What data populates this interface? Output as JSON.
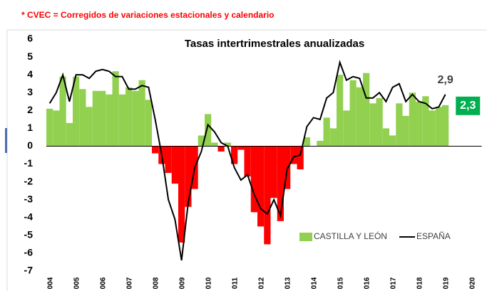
{
  "note_header": "* CVEC = Corregidos de variaciones estacionales y calendario",
  "chart_data": {
    "type": "bar_line",
    "title": "Tasas intertrimestrales anualizadas",
    "categories": [
      "004",
      null,
      null,
      null,
      "005",
      null,
      null,
      null,
      "006",
      null,
      null,
      null,
      "007",
      null,
      null,
      null,
      "008",
      null,
      null,
      null,
      "009",
      null,
      null,
      null,
      "010",
      null,
      null,
      null,
      "011",
      null,
      null,
      null,
      "012",
      null,
      null,
      null,
      "013",
      null,
      null,
      null,
      "014",
      null,
      null,
      null,
      "015",
      null,
      null,
      null,
      "016",
      null,
      null,
      null,
      "017",
      null,
      null,
      null,
      "018",
      null,
      null,
      null,
      "019",
      null,
      null,
      null,
      "020",
      null
    ],
    "series": [
      {
        "name": "CASTILLA Y LEÓN",
        "type": "bar",
        "color": "#92d050",
        "negative_color": "#ff0000",
        "values": [
          2.1,
          2.0,
          3.9,
          1.3,
          3.9,
          3.2,
          2.2,
          3.1,
          3.1,
          2.9,
          4.2,
          2.9,
          3.3,
          3.1,
          3.7,
          2.6,
          -0.4,
          -1.0,
          -1.5,
          -2.1,
          -5.4,
          -3.4,
          -2.4,
          0.6,
          1.8,
          0.2,
          -0.3,
          0.2,
          -1.0,
          -0.2,
          -1.7,
          -3.7,
          -4.5,
          -5.5,
          -2.9,
          -4.2,
          -2.4,
          -1.0,
          -1.3,
          0.5,
          0.0,
          0.3,
          1.6,
          1.0,
          4.0,
          2.0,
          3.7,
          3.3,
          4.1,
          2.4,
          2.7,
          1.0,
          0.6,
          2.4,
          1.7,
          3.0,
          2.5,
          2.8,
          2.0,
          2.2,
          2.3,
          null,
          null,
          null,
          null,
          null
        ],
        "value_labels": [
          null,
          null,
          null,
          null,
          null,
          null,
          null,
          null,
          null,
          null,
          null,
          null,
          null,
          null,
          null,
          null,
          null,
          null,
          null,
          null,
          null,
          null,
          null,
          null,
          null,
          null,
          null,
          null,
          null,
          null,
          null,
          null,
          null,
          null,
          null,
          null,
          null,
          null,
          null,
          null,
          null,
          null,
          null,
          null,
          null,
          null,
          null,
          null,
          null,
          null,
          null,
          null,
          null,
          null,
          null,
          null,
          null,
          null,
          null,
          null,
          "2,3",
          null,
          null,
          null,
          null,
          null
        ]
      },
      {
        "name": "ESPAÑA",
        "type": "line",
        "color": "#000000",
        "values": [
          2.4,
          3.0,
          4.0,
          2.5,
          4.0,
          4.0,
          3.8,
          4.2,
          4.3,
          4.2,
          3.9,
          3.9,
          3.2,
          3.2,
          3.4,
          3.3,
          1.5,
          -0.5,
          -3.0,
          -4.1,
          -6.4,
          -3.2,
          -1.2,
          -0.3,
          1.2,
          0.8,
          0.2,
          0.0,
          -1.2,
          -1.9,
          -1.6,
          -2.7,
          -3.5,
          -3.8,
          -3.0,
          -3.9,
          -1.3,
          -0.6,
          -0.5,
          1.1,
          1.6,
          1.5,
          2.7,
          3.0,
          4.7,
          3.7,
          3.9,
          3.8,
          2.7,
          2.7,
          3.0,
          2.5,
          3.3,
          3.5,
          2.5,
          2.9,
          2.5,
          2.4,
          2.1,
          2.2,
          2.9,
          null,
          null,
          null,
          null,
          null
        ],
        "value_labels": [
          null,
          null,
          null,
          null,
          null,
          null,
          null,
          null,
          null,
          null,
          null,
          null,
          null,
          null,
          null,
          null,
          null,
          null,
          null,
          null,
          null,
          null,
          null,
          null,
          null,
          null,
          null,
          null,
          null,
          null,
          null,
          null,
          null,
          null,
          null,
          null,
          null,
          null,
          null,
          null,
          null,
          null,
          null,
          null,
          null,
          null,
          null,
          null,
          null,
          null,
          null,
          null,
          null,
          null,
          null,
          null,
          null,
          null,
          null,
          null,
          "2,9",
          null,
          null,
          null,
          null,
          null
        ]
      }
    ],
    "ylim": [
      -7,
      6
    ],
    "yticks": [
      -7,
      -6,
      -5,
      -4,
      -3,
      -2,
      -1,
      0,
      1,
      2,
      3,
      4,
      5,
      6
    ],
    "legend": "bottom-right",
    "grid": false
  }
}
